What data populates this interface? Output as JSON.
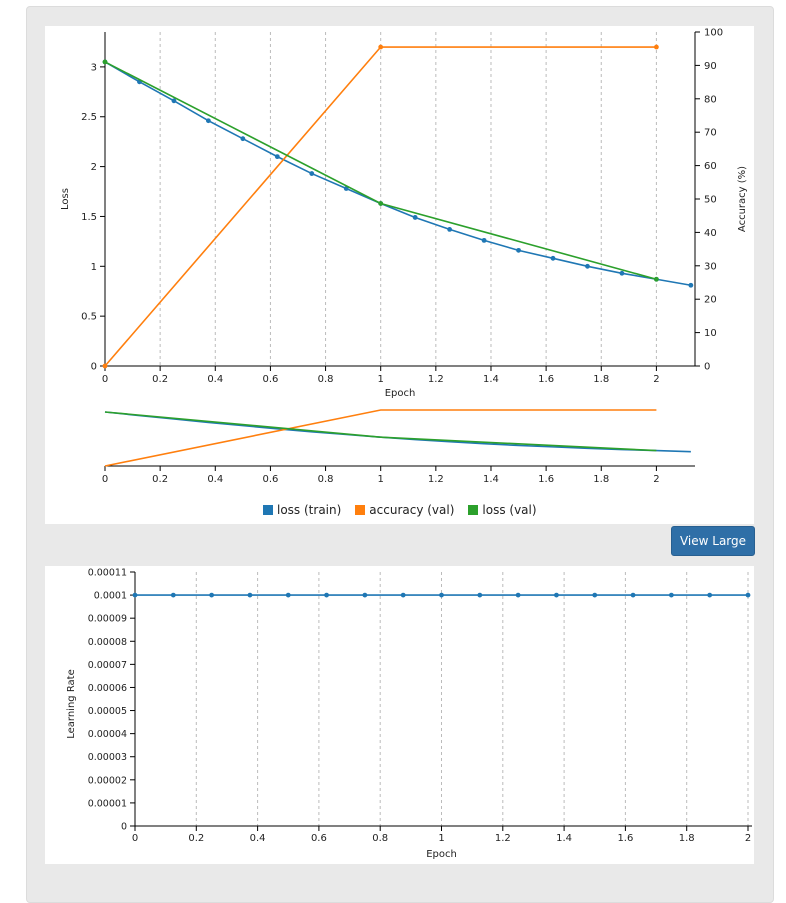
{
  "button": {
    "view_large": "View Large"
  },
  "chart_data": [
    {
      "type": "line",
      "xlabel": "Epoch",
      "ylabel": "Loss",
      "y2label": "Accuracy (%)",
      "xlim": [
        0,
        2.14
      ],
      "ylim": [
        0,
        3.35
      ],
      "y2lim": [
        0,
        100
      ],
      "x_ticks": [
        "0",
        "0.2",
        "0.4",
        "0.6",
        "0.8",
        "1",
        "1.2",
        "1.4",
        "1.6",
        "1.8",
        "2"
      ],
      "y_ticks": [
        "0",
        "0.5",
        "1",
        "1.5",
        "2",
        "2.5",
        "3"
      ],
      "y2_ticks": [
        "0",
        "10",
        "20",
        "30",
        "40",
        "50",
        "60",
        "70",
        "80",
        "90",
        "100"
      ],
      "grid": "vertical dashed",
      "legend_position": "bottom",
      "series": [
        {
          "name": "loss (train)",
          "axis": "left",
          "color": "#1f77b4",
          "x": [
            0,
            0.125,
            0.25,
            0.375,
            0.5,
            0.625,
            0.75,
            0.875,
            1.0,
            1.125,
            1.25,
            1.375,
            1.5,
            1.625,
            1.75,
            1.875,
            2.0,
            2.125
          ],
          "y": [
            3.05,
            2.85,
            2.66,
            2.46,
            2.28,
            2.1,
            1.93,
            1.78,
            1.63,
            1.49,
            1.37,
            1.26,
            1.16,
            1.08,
            1.0,
            0.93,
            0.87,
            0.81
          ]
        },
        {
          "name": "accuracy (val)",
          "axis": "right",
          "color": "#ff7f0e",
          "x": [
            0,
            1,
            2
          ],
          "y": [
            0,
            95.5,
            95.5
          ]
        },
        {
          "name": "loss (val)",
          "axis": "left",
          "color": "#2ca02c",
          "x": [
            0,
            1,
            2
          ],
          "y": [
            3.05,
            1.63,
            0.87
          ]
        }
      ]
    },
    {
      "type": "line",
      "xlabel": "Epoch",
      "ylabel": "Learning Rate",
      "xlim": [
        0,
        2
      ],
      "ylim": [
        0,
        0.00011
      ],
      "x_ticks": [
        "0",
        "0.2",
        "0.4",
        "0.6",
        "0.8",
        "1",
        "1.2",
        "1.4",
        "1.6",
        "1.8",
        "2"
      ],
      "y_ticks": [
        "0",
        "0.00001",
        "0.00002",
        "0.00003",
        "0.00004",
        "0.00005",
        "0.00006",
        "0.00007",
        "0.00008",
        "0.00009",
        "0.0001",
        "0.00011"
      ],
      "grid": "vertical dashed",
      "series": [
        {
          "name": "learning rate",
          "color": "#1f77b4",
          "x": [
            0,
            0.125,
            0.25,
            0.375,
            0.5,
            0.625,
            0.75,
            0.875,
            1.0,
            1.125,
            1.25,
            1.375,
            1.5,
            1.625,
            1.75,
            1.875,
            2.0
          ],
          "y": [
            0.0001,
            0.0001,
            0.0001,
            0.0001,
            0.0001,
            0.0001,
            0.0001,
            0.0001,
            0.0001,
            0.0001,
            0.0001,
            0.0001,
            0.0001,
            0.0001,
            0.0001,
            0.0001,
            0.0001
          ]
        }
      ]
    }
  ]
}
